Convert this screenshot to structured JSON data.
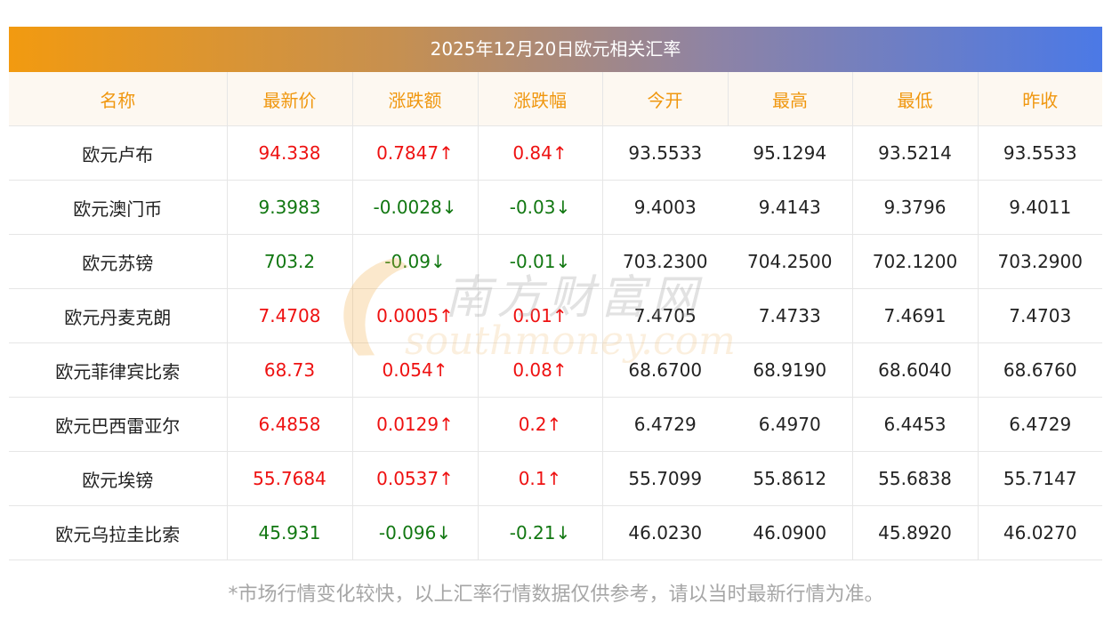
{
  "title": "2025年12月20日欧元相关汇率",
  "headers": [
    "名称",
    "最新价",
    "涨跌额",
    "涨跌幅",
    "今开",
    "最高",
    "最低",
    "昨收"
  ],
  "rows": [
    {
      "name": "欧元卢布",
      "last": "94.338",
      "change": "0.7847↑",
      "pct": "0.84↑",
      "open": "93.5533",
      "high": "95.1294",
      "low": "93.5214",
      "prev": "93.5533",
      "dir": "up"
    },
    {
      "name": "欧元澳门币",
      "last": "9.3983",
      "change": "-0.0028↓",
      "pct": "-0.03↓",
      "open": "9.4003",
      "high": "9.4143",
      "low": "9.3796",
      "prev": "9.4011",
      "dir": "down"
    },
    {
      "name": "欧元苏镑",
      "last": "703.2",
      "change": "-0.09↓",
      "pct": "-0.01↓",
      "open": "703.2300",
      "high": "704.2500",
      "low": "702.1200",
      "prev": "703.2900",
      "dir": "down"
    },
    {
      "name": "欧元丹麦克朗",
      "last": "7.4708",
      "change": "0.0005↑",
      "pct": "0.01↑",
      "open": "7.4705",
      "high": "7.4733",
      "low": "7.4691",
      "prev": "7.4703",
      "dir": "up"
    },
    {
      "name": "欧元菲律宾比索",
      "last": "68.73",
      "change": "0.054↑",
      "pct": "0.08↑",
      "open": "68.6700",
      "high": "68.9190",
      "low": "68.6040",
      "prev": "68.6760",
      "dir": "up"
    },
    {
      "name": "欧元巴西雷亚尔",
      "last": "6.4858",
      "change": "0.0129↑",
      "pct": "0.2↑",
      "open": "6.4729",
      "high": "6.4970",
      "low": "6.4453",
      "prev": "6.4729",
      "dir": "up"
    },
    {
      "name": "欧元埃镑",
      "last": "55.7684",
      "change": "0.0537↑",
      "pct": "0.1↑",
      "open": "55.7099",
      "high": "55.8612",
      "low": "55.6838",
      "prev": "55.7147",
      "dir": "up"
    },
    {
      "name": "欧元乌拉圭比索",
      "last": "45.931",
      "change": "-0.096↓",
      "pct": "-0.21↓",
      "open": "46.0230",
      "high": "46.0900",
      "low": "45.8920",
      "prev": "46.0270",
      "dir": "down"
    }
  ],
  "footnote": "*市场行情变化较快，以上汇率行情数据仅供参考，请以当时最新行情为准。",
  "watermark": {
    "cn": "南方财富网",
    "en": "southmoney.com"
  },
  "colors": {
    "up": "#ee1111",
    "down": "#117711",
    "header_text": "#f0970f",
    "title_gradient_start": "#f29a10",
    "title_gradient_end": "#4b79e6"
  }
}
